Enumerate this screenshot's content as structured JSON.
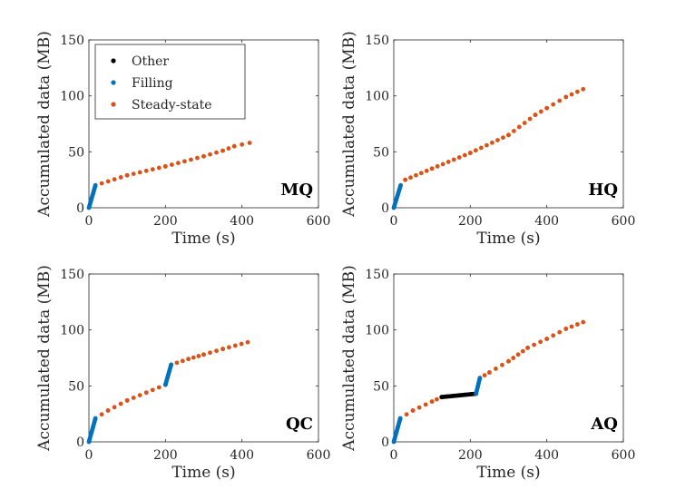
{
  "figure": {
    "legend": {
      "entries": [
        {
          "label": "Other",
          "color": "#000000"
        },
        {
          "label": "Filling",
          "color": "#0072BD"
        },
        {
          "label": "Steady-state",
          "color": "#D95319"
        }
      ],
      "placement": "top-left of first panel"
    }
  },
  "chart_data": [
    {
      "type": "scatter",
      "panel_label": "MQ",
      "xlabel": "Time (s)",
      "ylabel": "Accumulated data (MB)",
      "xlim": [
        0,
        600
      ],
      "ylim": [
        0,
        150
      ],
      "xticks": [
        0,
        200,
        400,
        600
      ],
      "yticks": [
        0,
        50,
        100,
        150
      ],
      "grid": false,
      "series": [
        {
          "name": "Other",
          "segments": []
        },
        {
          "name": "Filling",
          "segments": [
            [
              [
                0,
                0
              ],
              [
                17,
                20
              ]
            ]
          ]
        },
        {
          "name": "Steady-state",
          "segments": [
            [
              [
                17,
                20
              ],
              [
                100,
                29
              ],
              [
                200,
                37
              ],
              [
                300,
                46
              ],
              [
                350,
                51
              ],
              [
                380,
                55
              ],
              [
                420,
                58
              ]
            ]
          ]
        }
      ]
    },
    {
      "type": "scatter",
      "panel_label": "HQ",
      "xlabel": "Time (s)",
      "ylabel": "Accumulated data (MB)",
      "xlim": [
        0,
        600
      ],
      "ylim": [
        0,
        150
      ],
      "xticks": [
        0,
        200,
        400,
        600
      ],
      "yticks": [
        0,
        50,
        100,
        150
      ],
      "grid": false,
      "series": [
        {
          "name": "Other",
          "segments": []
        },
        {
          "name": "Filling",
          "segments": [
            [
              [
                0,
                0
              ],
              [
                18,
                20
              ]
            ]
          ]
        },
        {
          "name": "Steady-state",
          "segments": [
            [
              [
                18,
                20
              ],
              [
                30,
                25
              ],
              [
                100,
                35
              ],
              [
                200,
                49
              ],
              [
                300,
                65
              ],
              [
                370,
                83
              ],
              [
                400,
                89
              ],
              [
                450,
                99
              ],
              [
                495,
                106
              ]
            ]
          ]
        }
      ]
    },
    {
      "type": "scatter",
      "panel_label": "QC",
      "xlabel": "Time (s)",
      "ylabel": "Accumulated data (MB)",
      "xlim": [
        0,
        600
      ],
      "ylim": [
        0,
        150
      ],
      "xticks": [
        0,
        200,
        400,
        600
      ],
      "yticks": [
        0,
        50,
        100,
        150
      ],
      "grid": false,
      "series": [
        {
          "name": "Other",
          "segments": []
        },
        {
          "name": "Filling",
          "segments": [
            [
              [
                0,
                0
              ],
              [
                17,
                21
              ]
            ],
            [
              [
                200,
                51
              ],
              [
                215,
                69
              ]
            ]
          ]
        },
        {
          "name": "Steady-state",
          "segments": [
            [
              [
                17,
                21
              ],
              [
                50,
                28
              ],
              [
                100,
                37
              ],
              [
                150,
                44
              ],
              [
                200,
                51
              ]
            ],
            [
              [
                215,
                69
              ],
              [
                260,
                74
              ],
              [
                300,
                78
              ],
              [
                350,
                83
              ],
              [
                415,
                89
              ]
            ]
          ]
        }
      ]
    },
    {
      "type": "scatter",
      "panel_label": "AQ",
      "xlabel": "Time (s)",
      "ylabel": "Accumulated data (MB)",
      "xlim": [
        0,
        600
      ],
      "ylim": [
        0,
        150
      ],
      "xticks": [
        0,
        200,
        400,
        600
      ],
      "yticks": [
        0,
        50,
        100,
        150
      ],
      "grid": false,
      "series": [
        {
          "name": "Other",
          "segments": [
            [
              [
                125,
                40
              ],
              [
                215,
                43
              ]
            ]
          ]
        },
        {
          "name": "Filling",
          "segments": [
            [
              [
                0,
                0
              ],
              [
                17,
                21
              ]
            ],
            [
              [
                215,
                43
              ],
              [
                225,
                57
              ]
            ]
          ]
        },
        {
          "name": "Steady-state",
          "segments": [
            [
              [
                17,
                21
              ],
              [
                50,
                28
              ],
              [
                100,
                36
              ],
              [
                125,
                40
              ]
            ],
            [
              [
                225,
                57
              ],
              [
                250,
                62
              ],
              [
                300,
                72
              ],
              [
                350,
                84
              ],
              [
                400,
                92
              ],
              [
                450,
                101
              ],
              [
                495,
                107
              ]
            ]
          ]
        }
      ]
    }
  ]
}
